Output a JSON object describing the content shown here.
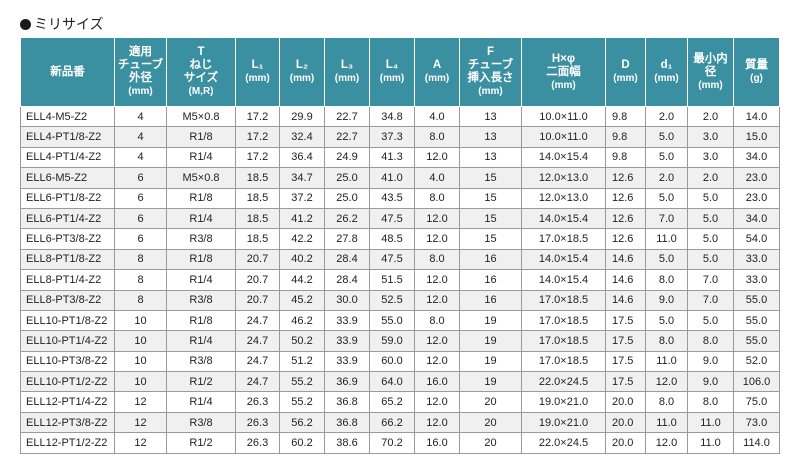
{
  "section": {
    "title": "ミリサイズ"
  },
  "headers": [
    {
      "lines": [
        "新品番"
      ],
      "unit": ""
    },
    {
      "lines": [
        "適用",
        "チューブ",
        "外径"
      ],
      "unit": "(mm)"
    },
    {
      "lines": [
        "T",
        "ねじ",
        "サイズ"
      ],
      "unit": "(M,R)"
    },
    {
      "lines": [
        "L₁"
      ],
      "unit": "(mm)"
    },
    {
      "lines": [
        "L₂"
      ],
      "unit": "(mm)"
    },
    {
      "lines": [
        "L₃"
      ],
      "unit": "(mm)"
    },
    {
      "lines": [
        "L₄"
      ],
      "unit": "(mm)"
    },
    {
      "lines": [
        "A"
      ],
      "unit": "(mm)"
    },
    {
      "lines": [
        "F",
        "チューブ",
        "挿入長さ"
      ],
      "unit": "(mm)"
    },
    {
      "lines": [
        "H×φ",
        "二面幅"
      ],
      "unit": "(mm)"
    },
    {
      "lines": [
        "D"
      ],
      "unit": "(mm)"
    },
    {
      "lines": [
        "d₁"
      ],
      "unit": "(mm)"
    },
    {
      "lines": [
        "最小内径"
      ],
      "unit": "(mm)"
    },
    {
      "lines": [
        "質量"
      ],
      "unit": "(g)"
    }
  ],
  "rows": [
    [
      "ELL4-M5-Z2",
      "4",
      "M5×0.8",
      "17.2",
      "29.9",
      "22.7",
      "34.8",
      "4.0",
      "13",
      "10.0×11.0",
      "9.8",
      "2.0",
      "2.0",
      "14.0"
    ],
    [
      "ELL4-PT1/8-Z2",
      "4",
      "R1/8",
      "17.2",
      "32.4",
      "22.7",
      "37.3",
      "8.0",
      "13",
      "10.0×11.0",
      "9.8",
      "5.0",
      "3.0",
      "15.0"
    ],
    [
      "ELL4-PT1/4-Z2",
      "4",
      "R1/4",
      "17.2",
      "36.4",
      "24.9",
      "41.3",
      "12.0",
      "13",
      "14.0×15.4",
      "9.8",
      "5.0",
      "3.0",
      "34.0"
    ],
    [
      "ELL6-M5-Z2",
      "6",
      "M5×0.8",
      "18.5",
      "34.7",
      "25.0",
      "41.0",
      "4.0",
      "15",
      "12.0×13.0",
      "12.6",
      "2.0",
      "2.0",
      "23.0"
    ],
    [
      "ELL6-PT1/8-Z2",
      "6",
      "R1/8",
      "18.5",
      "37.2",
      "25.0",
      "43.5",
      "8.0",
      "15",
      "12.0×13.0",
      "12.6",
      "5.0",
      "5.0",
      "23.0"
    ],
    [
      "ELL6-PT1/4-Z2",
      "6",
      "R1/4",
      "18.5",
      "41.2",
      "26.2",
      "47.5",
      "12.0",
      "15",
      "14.0×15.4",
      "12.6",
      "7.0",
      "5.0",
      "34.0"
    ],
    [
      "ELL6-PT3/8-Z2",
      "6",
      "R3/8",
      "18.5",
      "42.2",
      "27.8",
      "48.5",
      "12.0",
      "15",
      "17.0×18.5",
      "12.6",
      "11.0",
      "5.0",
      "54.0"
    ],
    [
      "ELL8-PT1/8-Z2",
      "8",
      "R1/8",
      "20.7",
      "40.2",
      "28.4",
      "47.5",
      "8.0",
      "16",
      "14.0×15.4",
      "14.6",
      "5.0",
      "5.0",
      "33.0"
    ],
    [
      "ELL8-PT1/4-Z2",
      "8",
      "R1/4",
      "20.7",
      "44.2",
      "28.4",
      "51.5",
      "12.0",
      "16",
      "14.0×15.4",
      "14.6",
      "8.0",
      "7.0",
      "33.0"
    ],
    [
      "ELL8-PT3/8-Z2",
      "8",
      "R3/8",
      "20.7",
      "45.2",
      "30.0",
      "52.5",
      "12.0",
      "16",
      "17.0×18.5",
      "14.6",
      "9.0",
      "7.0",
      "55.0"
    ],
    [
      "ELL10-PT1/8-Z2",
      "10",
      "R1/8",
      "24.7",
      "46.2",
      "33.9",
      "55.0",
      "8.0",
      "19",
      "17.0×18.5",
      "17.5",
      "5.0",
      "5.0",
      "55.0"
    ],
    [
      "ELL10-PT1/4-Z2",
      "10",
      "R1/4",
      "24.7",
      "50.2",
      "33.9",
      "59.0",
      "12.0",
      "19",
      "17.0×18.5",
      "17.5",
      "8.0",
      "8.0",
      "55.0"
    ],
    [
      "ELL10-PT3/8-Z2",
      "10",
      "R3/8",
      "24.7",
      "51.2",
      "33.9",
      "60.0",
      "12.0",
      "19",
      "17.0×18.5",
      "17.5",
      "11.0",
      "9.0",
      "52.0"
    ],
    [
      "ELL10-PT1/2-Z2",
      "10",
      "R1/2",
      "24.7",
      "55.2",
      "36.9",
      "64.0",
      "16.0",
      "19",
      "22.0×24.5",
      "17.5",
      "12.0",
      "9.0",
      "106.0"
    ],
    [
      "ELL12-PT1/4-Z2",
      "12",
      "R1/4",
      "26.3",
      "55.2",
      "36.8",
      "65.2",
      "12.0",
      "20",
      "19.0×21.0",
      "20.0",
      "8.0",
      "8.0",
      "75.0"
    ],
    [
      "ELL12-PT3/8-Z2",
      "12",
      "R3/8",
      "26.3",
      "56.2",
      "36.8",
      "66.2",
      "12.0",
      "20",
      "19.0×21.0",
      "20.0",
      "11.0",
      "11.0",
      "73.0"
    ],
    [
      "ELL12-PT1/2-Z2",
      "12",
      "R1/2",
      "26.3",
      "60.2",
      "38.6",
      "70.2",
      "16.0",
      "20",
      "22.0×24.5",
      "20.0",
      "12.0",
      "11.0",
      "114.0"
    ]
  ]
}
